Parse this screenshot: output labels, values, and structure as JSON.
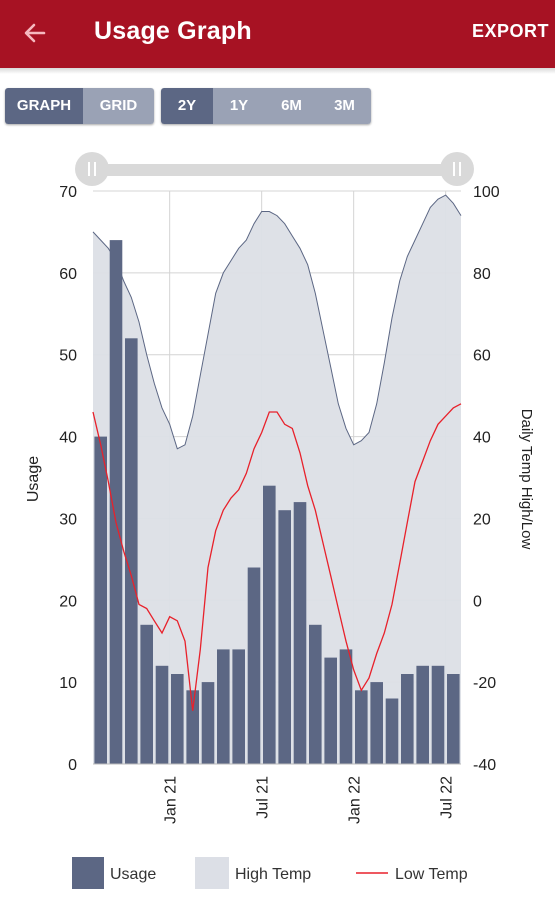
{
  "header": {
    "title": "Usage Graph",
    "export_label": "EXPORT",
    "back_icon": "arrow-left-icon"
  },
  "view_toggle": {
    "options": [
      "GRAPH",
      "GRID"
    ],
    "selected": "GRAPH"
  },
  "range_toggle": {
    "options": [
      "2Y",
      "1Y",
      "6M",
      "3M"
    ],
    "selected": "2Y"
  },
  "colors": {
    "header": "#a71223",
    "usage": "#5c6784",
    "high_temp_fill": "#dcdfe6",
    "high_temp_line": "#5c6784",
    "low_temp": "#e8212b"
  },
  "chart_data": {
    "type": "bar",
    "left_axis": {
      "label": "Usage",
      "range": [
        0,
        70
      ],
      "ticks": [
        "0",
        "10",
        "20",
        "30",
        "40",
        "50",
        "60",
        "70"
      ]
    },
    "right_axis": {
      "label": "Daily Temp High/Low",
      "range": [
        -40,
        100
      ],
      "ticks": [
        "-40",
        "-20",
        "0",
        "20",
        "40",
        "60",
        "80",
        "100"
      ]
    },
    "x_ticks": [
      {
        "label": "Jan 21",
        "position": 4.5
      },
      {
        "label": "Jul 21",
        "position": 10.5
      },
      {
        "label": "Jan 22",
        "position": 16.5
      },
      {
        "label": "Jul 22",
        "position": 22.5
      }
    ],
    "x_range": [
      -0.5,
      23.5
    ],
    "grid": true,
    "legend_position": "bottom",
    "series": [
      {
        "name": "Usage",
        "type": "bar",
        "values": [
          40,
          64,
          52,
          17,
          12,
          11,
          9,
          10,
          14,
          14,
          24,
          34,
          31,
          32,
          17,
          13,
          14,
          9,
          10,
          8,
          11,
          12,
          12,
          11
        ]
      },
      {
        "name": "High Temp",
        "type": "area",
        "x": [
          -0.5,
          0,
          0.5,
          1,
          1.5,
          2,
          2.5,
          3,
          3.5,
          4,
          4.5,
          5,
          5.5,
          6,
          6.5,
          7,
          7.5,
          8,
          8.5,
          9,
          9.5,
          10,
          10.5,
          11,
          11.5,
          12,
          12.5,
          13,
          13.5,
          14,
          14.5,
          15,
          15.5,
          16,
          16.5,
          17,
          17.5,
          18,
          18.5,
          19,
          19.5,
          20,
          20.5,
          21,
          21.5,
          22,
          22.5,
          23,
          23.5
        ],
        "values": [
          90,
          88,
          86,
          83,
          78,
          74,
          68,
          60,
          53,
          47,
          43,
          37,
          38,
          45,
          55,
          65,
          75,
          80,
          83,
          86,
          88,
          92,
          95,
          95,
          94,
          92,
          89,
          86,
          82,
          75,
          66,
          57,
          48,
          42,
          38,
          39,
          41,
          48,
          58,
          69,
          78,
          84,
          88,
          92,
          96,
          98,
          99,
          97,
          94
        ]
      },
      {
        "name": "Low Temp",
        "type": "line",
        "x": [
          -0.5,
          0,
          0.5,
          1,
          1.5,
          2,
          2.5,
          3,
          3.5,
          4,
          4.5,
          5,
          5.5,
          6,
          6.5,
          7,
          7.5,
          8,
          8.5,
          9,
          9.5,
          10,
          10.5,
          11,
          11.5,
          12,
          12.5,
          13,
          13.5,
          14,
          14.5,
          15,
          15.5,
          16,
          16.5,
          17,
          17.5,
          18,
          18.5,
          19,
          19.5,
          20,
          20.5,
          21,
          21.5,
          22,
          22.5,
          23,
          23.5
        ],
        "values": [
          46,
          38,
          29,
          19,
          12,
          6,
          -1,
          -2,
          -5,
          -8,
          -4,
          -5,
          -10,
          -27,
          -12,
          8,
          17,
          22,
          25,
          27,
          31,
          37,
          41,
          46,
          46,
          43,
          42,
          36,
          28,
          22,
          14,
          6,
          -2,
          -10,
          -17,
          -22,
          -19,
          -13,
          -8,
          -1,
          9,
          19,
          29,
          34,
          39,
          43,
          45,
          47,
          48
        ]
      }
    ]
  }
}
